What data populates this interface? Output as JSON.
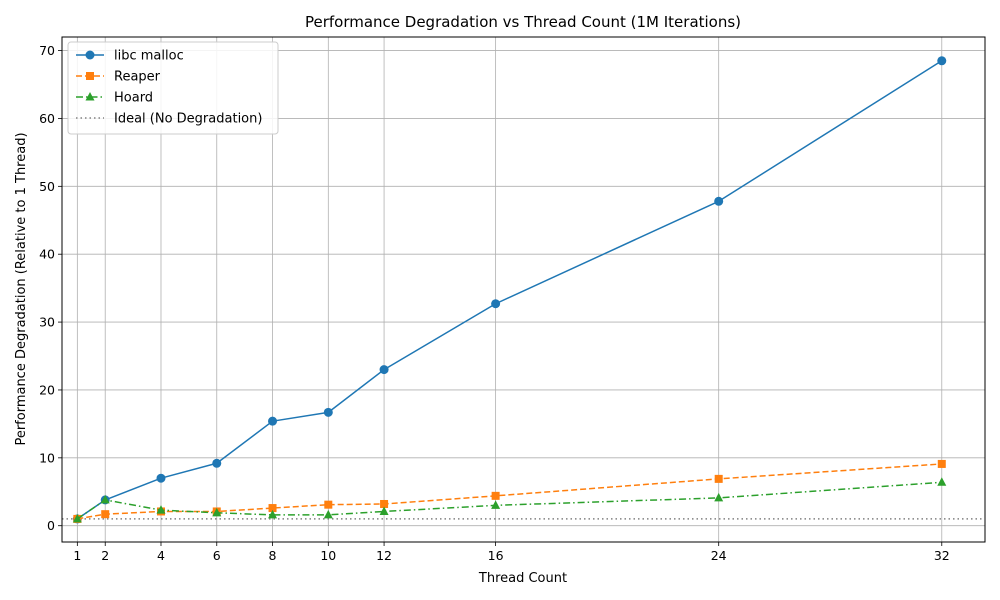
{
  "chart_data": {
    "type": "line",
    "title": "Performance Degradation vs Thread Count (1M Iterations)",
    "xlabel": "Thread Count",
    "ylabel": "Performance Degradation (Relative to 1 Thread)",
    "x": [
      1,
      2,
      4,
      6,
      8,
      10,
      12,
      16,
      24,
      32
    ],
    "xticks": [
      1,
      2,
      4,
      6,
      8,
      10,
      12,
      16,
      24,
      32
    ],
    "yticks": [
      0,
      10,
      20,
      30,
      40,
      50,
      60,
      70
    ],
    "xlim": [
      0.45,
      33.55
    ],
    "ylim": [
      -2.4,
      72.0
    ],
    "grid": true,
    "legend_position": "upper-left",
    "series": [
      {
        "name": "libc malloc",
        "color": "#1f77b4",
        "marker": "circle",
        "linestyle": "solid",
        "values": [
          1.0,
          3.8,
          7.0,
          9.2,
          15.4,
          16.7,
          23.0,
          32.7,
          47.8,
          68.5
        ]
      },
      {
        "name": "Reaper",
        "color": "#ff7f0e",
        "marker": "square",
        "linestyle": "dashed",
        "values": [
          1.0,
          1.7,
          2.1,
          2.1,
          2.6,
          3.1,
          3.2,
          4.4,
          6.9,
          9.1
        ]
      },
      {
        "name": "Hoard",
        "color": "#2ca02c",
        "marker": "triangle",
        "linestyle": "dashdot",
        "values": [
          1.0,
          3.8,
          2.3,
          1.9,
          1.6,
          1.6,
          2.1,
          3.0,
          4.1,
          6.4
        ]
      }
    ],
    "reference_line": {
      "name": "Ideal (No Degradation)",
      "y": 1,
      "color": "#808080",
      "linestyle": "dotted"
    }
  }
}
